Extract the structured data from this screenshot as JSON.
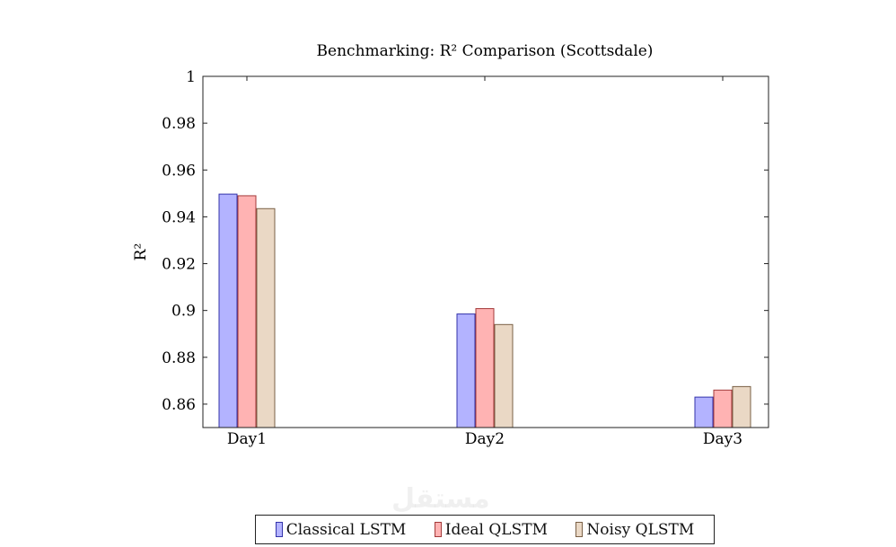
{
  "chart_data": {
    "type": "bar",
    "title": "Benchmarking: R² Comparison (Scottsdale)",
    "xlabel": "",
    "ylabel": "R²",
    "categories": [
      "Day1",
      "Day2",
      "Day3"
    ],
    "ylim": [
      0.85,
      1.0
    ],
    "yticks": [
      "0.86",
      "0.88",
      "0.9",
      "0.92",
      "0.94",
      "0.96",
      "0.98",
      "1"
    ],
    "grid": false,
    "legend_position": "bottom",
    "series": [
      {
        "name": "Classical LSTM",
        "values": [
          0.9497,
          0.8985,
          0.863
        ],
        "fill": "#b3b3ff",
        "stroke": "#3333aa"
      },
      {
        "name": "Ideal QLSTM",
        "values": [
          0.949,
          0.9008,
          0.866
        ],
        "fill": "#ffb3b3",
        "stroke": "#a33a3a"
      },
      {
        "name": "Noisy QLSTM",
        "values": [
          0.9435,
          0.894,
          0.8675
        ],
        "fill": "#ead8c5",
        "stroke": "#7a6046"
      }
    ]
  },
  "watermark": "مستقل"
}
